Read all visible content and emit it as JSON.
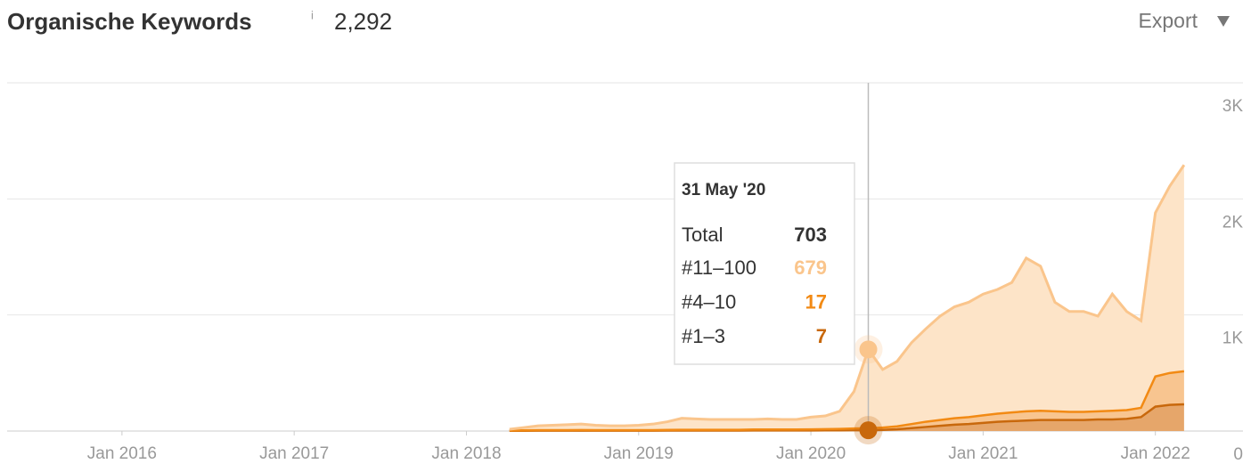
{
  "header": {
    "title": "Organische Keywords",
    "info": "i",
    "count": "2,292",
    "export": "Export"
  },
  "chart_data": {
    "type": "area",
    "stacked": true,
    "x": [
      "2018-04",
      "2018-05",
      "2018-06",
      "2018-07",
      "2018-08",
      "2018-09",
      "2018-10",
      "2018-11",
      "2018-12",
      "2019-01",
      "2019-02",
      "2019-03",
      "2019-04",
      "2019-05",
      "2019-06",
      "2019-07",
      "2019-08",
      "2019-09",
      "2019-10",
      "2019-11",
      "2019-12",
      "2020-01",
      "2020-02",
      "2020-03",
      "2020-04",
      "2020-05",
      "2020-06",
      "2020-07",
      "2020-08",
      "2020-09",
      "2020-10",
      "2020-11",
      "2020-12",
      "2021-01",
      "2021-02",
      "2021-03",
      "2021-04",
      "2021-05",
      "2021-06",
      "2021-07",
      "2021-08",
      "2021-09",
      "2021-10",
      "2021-11",
      "2021-12",
      "2022-01",
      "2022-02",
      "2022-03"
    ],
    "series": [
      {
        "name": "#11–100",
        "color": "#fac58c",
        "fill": "#fde4c8",
        "values": [
          10,
          24,
          37,
          42,
          47,
          51,
          42,
          37,
          37,
          42,
          52,
          70,
          99,
          94,
          89,
          89,
          89,
          87,
          92,
          87,
          87,
          106,
          114,
          152,
          318,
          679,
          500,
          560,
          700,
          800,
          895,
          960,
          990,
          1045,
          1070,
          1120,
          1320,
          1245,
          940,
          865,
          865,
          820,
          1005,
          850,
          750,
          1410,
          1610,
          1777
        ]
      },
      {
        "name": "#4–10",
        "color": "#f28a14",
        "fill": "#f8c590",
        "values": [
          3,
          4,
          5,
          5,
          5,
          6,
          5,
          5,
          5,
          5,
          5,
          6,
          7,
          7,
          7,
          7,
          7,
          8,
          8,
          8,
          8,
          9,
          10,
          12,
          15,
          17,
          20,
          25,
          35,
          45,
          50,
          55,
          60,
          65,
          70,
          75,
          80,
          80,
          75,
          70,
          70,
          70,
          75,
          75,
          80,
          260,
          275,
          285
        ]
      },
      {
        "name": "#1–3",
        "color": "#c8680c",
        "fill": "#e6a66a",
        "values": [
          2,
          2,
          3,
          3,
          3,
          3,
          3,
          3,
          3,
          3,
          3,
          4,
          4,
          4,
          4,
          4,
          4,
          5,
          5,
          5,
          5,
          5,
          6,
          6,
          7,
          7,
          10,
          15,
          25,
          35,
          45,
          55,
          60,
          70,
          80,
          85,
          90,
          95,
          95,
          95,
          95,
          100,
          100,
          105,
          120,
          210,
          225,
          230
        ]
      }
    ],
    "xlim": [
      "2015-05",
      "2022-04"
    ],
    "xticks": [
      {
        "value": "2016-01",
        "label": "Jan 2016"
      },
      {
        "value": "2017-01",
        "label": "Jan 2017"
      },
      {
        "value": "2018-01",
        "label": "Jan 2018"
      },
      {
        "value": "2019-01",
        "label": "Jan 2019"
      },
      {
        "value": "2020-01",
        "label": "Jan 2020"
      },
      {
        "value": "2021-01",
        "label": "Jan 2021"
      },
      {
        "value": "2022-01",
        "label": "Jan 2022"
      }
    ],
    "ylim": [
      0,
      3000
    ],
    "yticks": [
      0,
      {
        "value": 1000,
        "label": "1K"
      },
      {
        "value": 2000,
        "label": "2K"
      },
      {
        "value": 3000,
        "label": "3K"
      }
    ],
    "grid": true,
    "tooltip": {
      "date": "31 May '20",
      "total_label": "Total",
      "total": 703,
      "index": 25
    }
  }
}
